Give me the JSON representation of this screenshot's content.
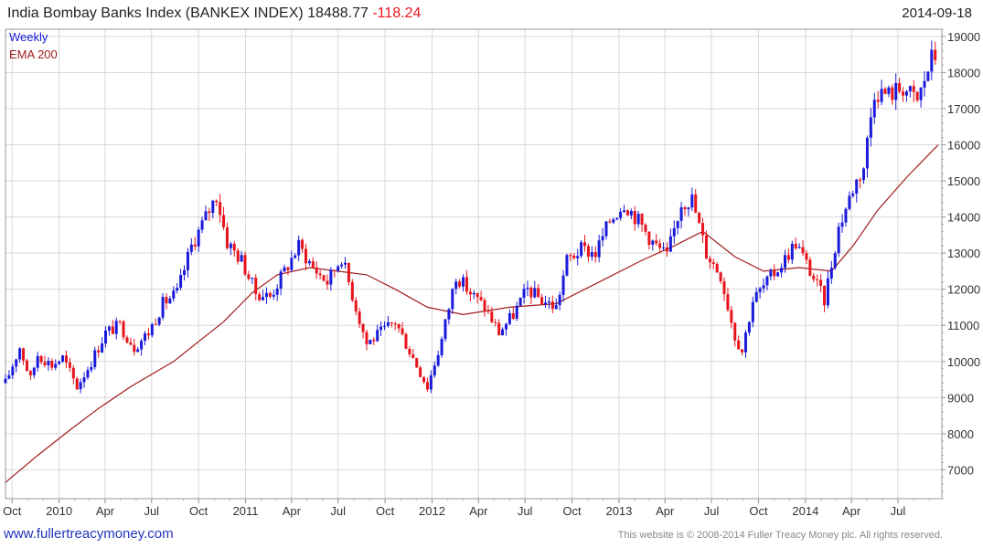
{
  "header": {
    "title": "India Bombay Banks Index (BANKEX INDEX) 18488.77",
    "change": "-118.24",
    "date": "2014-09-18"
  },
  "footer": {
    "left": "www.fullertreacymoney.com",
    "right": "This website is © 2008-2014 Fuller Treacy Money plc. All rights reserved."
  },
  "chart_data": {
    "type": "line",
    "title": "India Bombay Banks Index (BANKEX INDEX) 18488.77 -118.24",
    "frequency": "Weekly",
    "series_colors": {
      "up": "#1a1adc",
      "down": "#e8141c",
      "ema": "#a01c1c"
    },
    "ylim": [
      6200,
      19200
    ],
    "yticks": [
      7000,
      8000,
      9000,
      10000,
      11000,
      12000,
      13000,
      14000,
      15000,
      16000,
      17000,
      18000,
      19000
    ],
    "xticks": [
      "Oct",
      "2010",
      "Apr",
      "Jul",
      "Oct",
      "2011",
      "Apr",
      "Jul",
      "Oct",
      "2012",
      "Apr",
      "Jul",
      "Oct",
      "2013",
      "Apr",
      "Jul",
      "Oct",
      "2014",
      "Apr",
      "Jul"
    ],
    "xlim": [
      "2009-09-18",
      "2014-09-25"
    ],
    "grid": true,
    "legend": "top-left",
    "series": [
      {
        "name": "Weekly",
        "style": "candlestick",
        "points": [
          [
            "2009-09-18",
            9400
          ],
          [
            "2009-10-16",
            10400
          ],
          [
            "2009-11-06",
            9500
          ],
          [
            "2009-11-20",
            10200
          ],
          [
            "2009-12-18",
            9900
          ],
          [
            "2010-01-08",
            10100
          ],
          [
            "2010-02-05",
            9300
          ],
          [
            "2010-03-05",
            10000
          ],
          [
            "2010-04-02",
            10800
          ],
          [
            "2010-04-30",
            11000
          ],
          [
            "2010-05-28",
            10400
          ],
          [
            "2010-06-25",
            10800
          ],
          [
            "2010-07-23",
            11600
          ],
          [
            "2010-08-20",
            11900
          ],
          [
            "2010-09-17",
            13200
          ],
          [
            "2010-10-15",
            14000
          ],
          [
            "2010-11-05",
            14600
          ],
          [
            "2010-11-26",
            13300
          ],
          [
            "2010-12-24",
            12800
          ],
          [
            "2011-01-21",
            11900
          ],
          [
            "2011-02-18",
            11800
          ],
          [
            "2011-03-18",
            12500
          ],
          [
            "2011-04-15",
            13200
          ],
          [
            "2011-05-13",
            12600
          ],
          [
            "2011-06-10",
            12200
          ],
          [
            "2011-07-08",
            12900
          ],
          [
            "2011-08-05",
            11500
          ],
          [
            "2011-08-26",
            10500
          ],
          [
            "2011-09-23",
            10800
          ],
          [
            "2011-10-21",
            11100
          ],
          [
            "2011-11-18",
            10300
          ],
          [
            "2011-12-23",
            9300
          ],
          [
            "2012-01-20",
            10600
          ],
          [
            "2012-02-17",
            12400
          ],
          [
            "2012-03-16",
            11900
          ],
          [
            "2012-04-13",
            11500
          ],
          [
            "2012-05-11",
            10800
          ],
          [
            "2012-06-08",
            11300
          ],
          [
            "2012-07-06",
            12000
          ],
          [
            "2012-08-03",
            11700
          ],
          [
            "2012-08-31",
            11500
          ],
          [
            "2012-09-21",
            12800
          ],
          [
            "2012-10-19",
            13100
          ],
          [
            "2012-11-16",
            13000
          ],
          [
            "2012-12-14",
            13900
          ],
          [
            "2013-01-11",
            14400
          ],
          [
            "2013-02-08",
            13900
          ],
          [
            "2013-03-08",
            13300
          ],
          [
            "2013-04-05",
            12900
          ],
          [
            "2013-05-03",
            14400
          ],
          [
            "2013-05-24",
            14500
          ],
          [
            "2013-06-21",
            13000
          ],
          [
            "2013-07-19",
            12400
          ],
          [
            "2013-08-16",
            10700
          ],
          [
            "2013-08-30",
            10300
          ],
          [
            "2013-09-20",
            11700
          ],
          [
            "2013-10-18",
            12200
          ],
          [
            "2013-11-15",
            12700
          ],
          [
            "2013-12-13",
            13300
          ],
          [
            "2014-01-10",
            12500
          ],
          [
            "2014-02-07",
            11700
          ],
          [
            "2014-03-07",
            13700
          ],
          [
            "2014-04-04",
            14800
          ],
          [
            "2014-04-25",
            15400
          ],
          [
            "2014-05-16",
            17500
          ],
          [
            "2014-06-13",
            17400
          ],
          [
            "2014-07-11",
            17600
          ],
          [
            "2014-08-08",
            17200
          ],
          [
            "2014-09-05",
            18400
          ],
          [
            "2014-09-18",
            18489
          ]
        ]
      },
      {
        "name": "EMA 200",
        "style": "line",
        "points": [
          [
            "2009-09-18",
            6650
          ],
          [
            "2009-11-20",
            7400
          ],
          [
            "2010-01-22",
            8100
          ],
          [
            "2010-03-19",
            8700
          ],
          [
            "2010-05-21",
            9300
          ],
          [
            "2010-08-13",
            10000
          ],
          [
            "2010-11-19",
            11100
          ],
          [
            "2011-01-14",
            11900
          ],
          [
            "2011-03-04",
            12400
          ],
          [
            "2011-05-06",
            12600
          ],
          [
            "2011-07-01",
            12500
          ],
          [
            "2011-08-26",
            12400
          ],
          [
            "2011-10-21",
            12000
          ],
          [
            "2011-12-23",
            11500
          ],
          [
            "2012-03-02",
            11300
          ],
          [
            "2012-06-01",
            11500
          ],
          [
            "2012-08-31",
            11600
          ],
          [
            "2012-11-23",
            12200
          ],
          [
            "2013-02-15",
            12800
          ],
          [
            "2013-04-19",
            13200
          ],
          [
            "2013-06-14",
            13600
          ],
          [
            "2013-08-16",
            12900
          ],
          [
            "2013-10-11",
            12500
          ],
          [
            "2013-12-20",
            12600
          ],
          [
            "2014-02-21",
            12500
          ],
          [
            "2014-04-04",
            13200
          ],
          [
            "2014-05-23",
            14200
          ],
          [
            "2014-07-18",
            15100
          ],
          [
            "2014-09-18",
            16000
          ]
        ]
      }
    ]
  }
}
